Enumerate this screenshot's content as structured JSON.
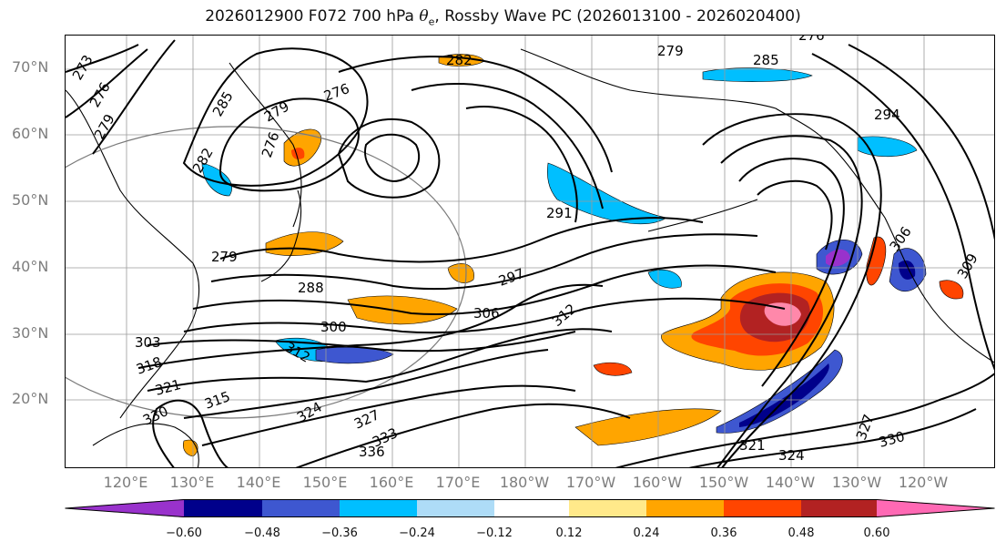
{
  "title_prefix": "2026012900 F072 700 hPa ",
  "title_symbol": "θ",
  "title_sub": "e",
  "title_suffix": ", Rossby Wave PC (2026013100 - 2026020400)",
  "latitude_labels": [
    "70°N",
    "60°N",
    "50°N",
    "40°N",
    "30°N",
    "20°N"
  ],
  "longitude_labels": [
    "120°E",
    "130°E",
    "140°E",
    "150°E",
    "160°E",
    "170°E",
    "180°W",
    "170°W",
    "160°W",
    "150°W",
    "140°W",
    "130°W",
    "120°W"
  ],
  "contour_labels": [
    "273",
    "276",
    "279",
    "282",
    "285",
    "279",
    "276",
    "276",
    "282",
    "279",
    "276",
    "285",
    "294",
    "291",
    "297",
    "288",
    "306",
    "300",
    "303",
    "312",
    "318",
    "321",
    "315",
    "330",
    "324",
    "327",
    "333",
    "336",
    "306",
    "309",
    "321",
    "324",
    "330",
    "327",
    "312",
    "279"
  ],
  "colorbar": {
    "labels": [
      "−0.60",
      "−0.48",
      "−0.36",
      "−0.24",
      "−0.12",
      "0.12",
      "0.24",
      "0.36",
      "0.48",
      "0.60"
    ],
    "colors": [
      "#9932cc",
      "#00008b",
      "#3e57d0",
      "#00bfff",
      "#aedcf7",
      "#ffffff",
      "#ffe98a",
      "#ffa500",
      "#ff4500",
      "#b22222",
      "#ff88aa",
      "#ff69b4"
    ]
  }
}
